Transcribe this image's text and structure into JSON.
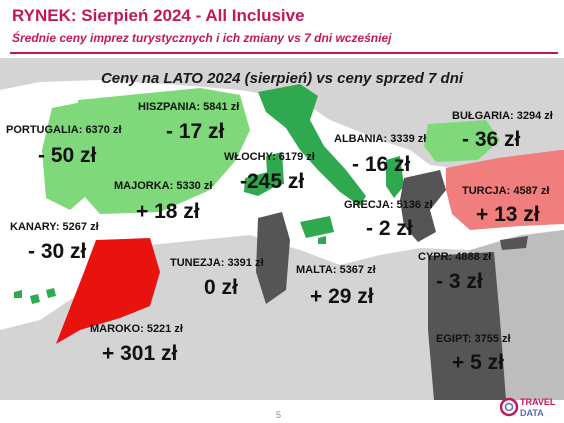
{
  "header": {
    "title": "RYNEK: Sierpień 2024 - All Inclusive",
    "subtitle": "Średnie ceny imprez turystycznych i ich zmiany vs 7 dni wcześniej"
  },
  "map": {
    "heading": "Ceny na LATO 2024 (sierpień) vs ceny sprzed 7 dni"
  },
  "colors": {
    "accent": "#c2185b",
    "price_up_strong": "#e8130e",
    "price_up": "#f07e7c",
    "price_down_strong": "#2fa84f",
    "price_down": "#7fd97a",
    "no_change": "#555555",
    "land": "#d4d4d4",
    "sea": "#ffffff"
  },
  "destinations": [
    {
      "id": "portugalia",
      "label": "PORTUGALIA: 6370 zł",
      "change": "- 50 zł"
    },
    {
      "id": "hiszpania",
      "label": "HISZPANIA: 5841 zł",
      "change": "- 17 zł"
    },
    {
      "id": "wlochy",
      "label": "WŁOCHY: 6179 zł",
      "change": "-245 zł"
    },
    {
      "id": "majorka",
      "label": "MAJORKA: 5330 zł",
      "change": "+ 18 zł"
    },
    {
      "id": "kanary",
      "label": "KANARY: 5267 zł",
      "change": "- 30 zł"
    },
    {
      "id": "maroko",
      "label": "MAROKO: 5221 zł",
      "change": "+ 301 zł"
    },
    {
      "id": "tunezja",
      "label": "TUNEZJA: 3391 zł",
      "change": "0 zł"
    },
    {
      "id": "malta",
      "label": "MALTA: 5367 zł",
      "change": "+ 29 zł"
    },
    {
      "id": "albania",
      "label": "ALBANIA: 3339 zł",
      "change": "- 16 zł"
    },
    {
      "id": "grecja",
      "label": "GRECJA: 5136 zł",
      "change": "- 2 zł"
    },
    {
      "id": "bulgaria",
      "label": "BUŁGARIA: 3294 zł",
      "change": "- 36 zł"
    },
    {
      "id": "turcja",
      "label": "TURCJA: 4587 zł",
      "change": "+ 13 zł"
    },
    {
      "id": "cypr",
      "label": "CYPR: 4888 zł",
      "change": "- 3 zł"
    },
    {
      "id": "egipt",
      "label": "EGIPT: 3755 zł",
      "change": "+ 5 zł"
    }
  ],
  "footer": {
    "page_number": "5",
    "logo_line1": "TRAVEL",
    "logo_line2": "DATA"
  }
}
